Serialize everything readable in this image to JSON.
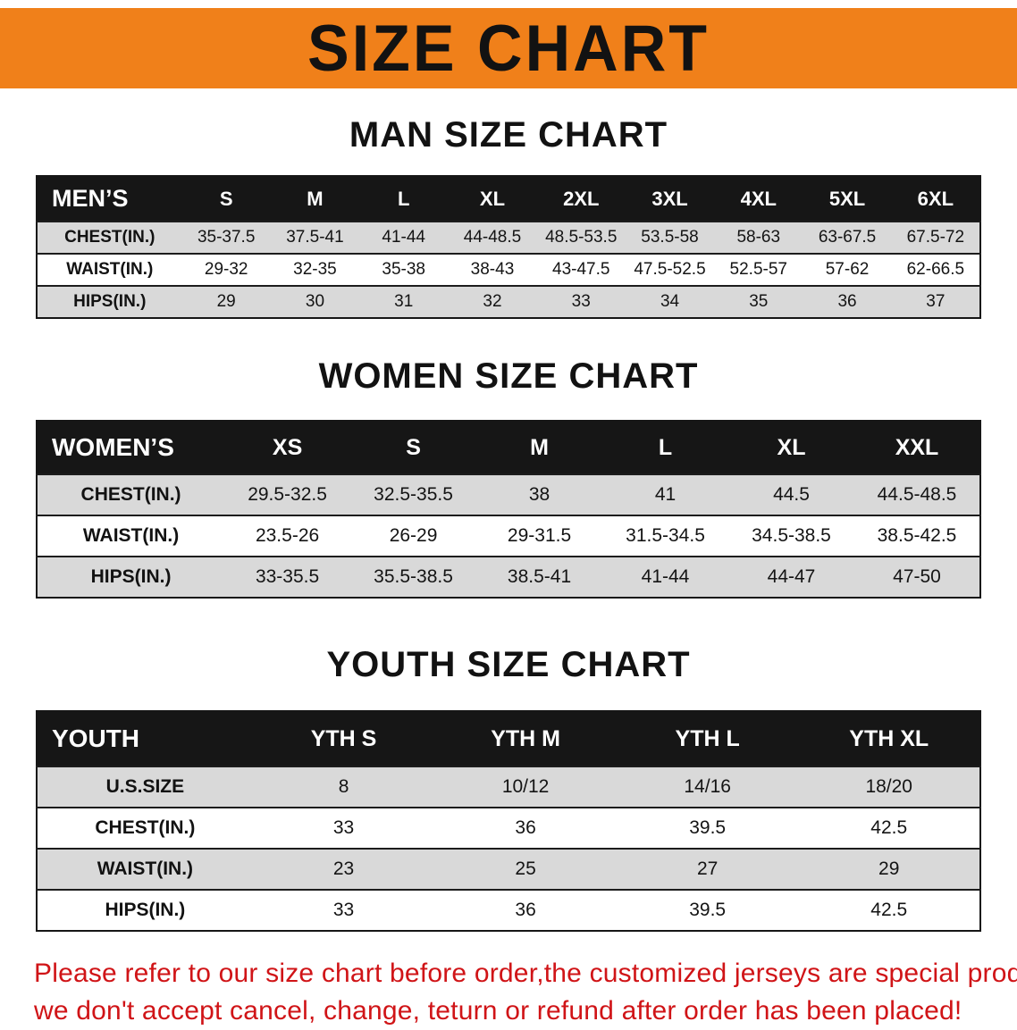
{
  "banner": {
    "title": "SIZE CHART"
  },
  "colors": {
    "banner_bg": "#f0801a",
    "table_header_bg": "#161616",
    "row_stripe": "#d9d9d9",
    "disclaimer_text": "#d01417"
  },
  "sections": [
    {
      "id": "men",
      "heading": "MAN SIZE CHART",
      "table": {
        "header": [
          "MEN’S",
          "S",
          "M",
          "L",
          "XL",
          "2XL",
          "3XL",
          "4XL",
          "5XL",
          "6XL"
        ],
        "rows": [
          [
            "CHEST(IN.)",
            "35-37.5",
            "37.5-41",
            "41-44",
            "44-48.5",
            "48.5-53.5",
            "53.5-58",
            "58-63",
            "63-67.5",
            "67.5-72"
          ],
          [
            "WAIST(IN.)",
            "29-32",
            "32-35",
            "35-38",
            "38-43",
            "43-47.5",
            "47.5-52.5",
            "52.5-57",
            "57-62",
            "62-66.5"
          ],
          [
            "HIPS(IN.)",
            "29",
            "30",
            "31",
            "32",
            "33",
            "34",
            "35",
            "36",
            "37"
          ]
        ]
      }
    },
    {
      "id": "women",
      "heading": "WOMEN SIZE CHART",
      "table": {
        "header": [
          "WOMEN’S",
          "XS",
          "S",
          "M",
          "L",
          "XL",
          "XXL"
        ],
        "rows": [
          [
            "CHEST(IN.)",
            "29.5-32.5",
            "32.5-35.5",
            "38",
            "41",
            "44.5",
            "44.5-48.5"
          ],
          [
            "WAIST(IN.)",
            "23.5-26",
            "26-29",
            "29-31.5",
            "31.5-34.5",
            "34.5-38.5",
            "38.5-42.5"
          ],
          [
            "HIPS(IN.)",
            "33-35.5",
            "35.5-38.5",
            "38.5-41",
            "41-44",
            "44-47",
            "47-50"
          ]
        ]
      }
    },
    {
      "id": "youth",
      "heading": "YOUTH SIZE CHART",
      "table": {
        "header": [
          "YOUTH",
          "YTH S",
          "YTH M",
          "YTH L",
          "YTH XL"
        ],
        "rows": [
          [
            "U.S.SIZE",
            "8",
            "10/12",
            "14/16",
            "18/20"
          ],
          [
            "CHEST(IN.)",
            "33",
            "36",
            "39.5",
            "42.5"
          ],
          [
            "WAIST(IN.)",
            "23",
            "25",
            "27",
            "29"
          ],
          [
            "HIPS(IN.)",
            "33",
            "36",
            "39.5",
            "42.5"
          ]
        ]
      }
    }
  ],
  "footer": {
    "line1": "Please refer to our size chart before order,the customized jerseys are special products,",
    "line2": "we don't accept cancel, change, teturn or refund after order has been placed!"
  }
}
